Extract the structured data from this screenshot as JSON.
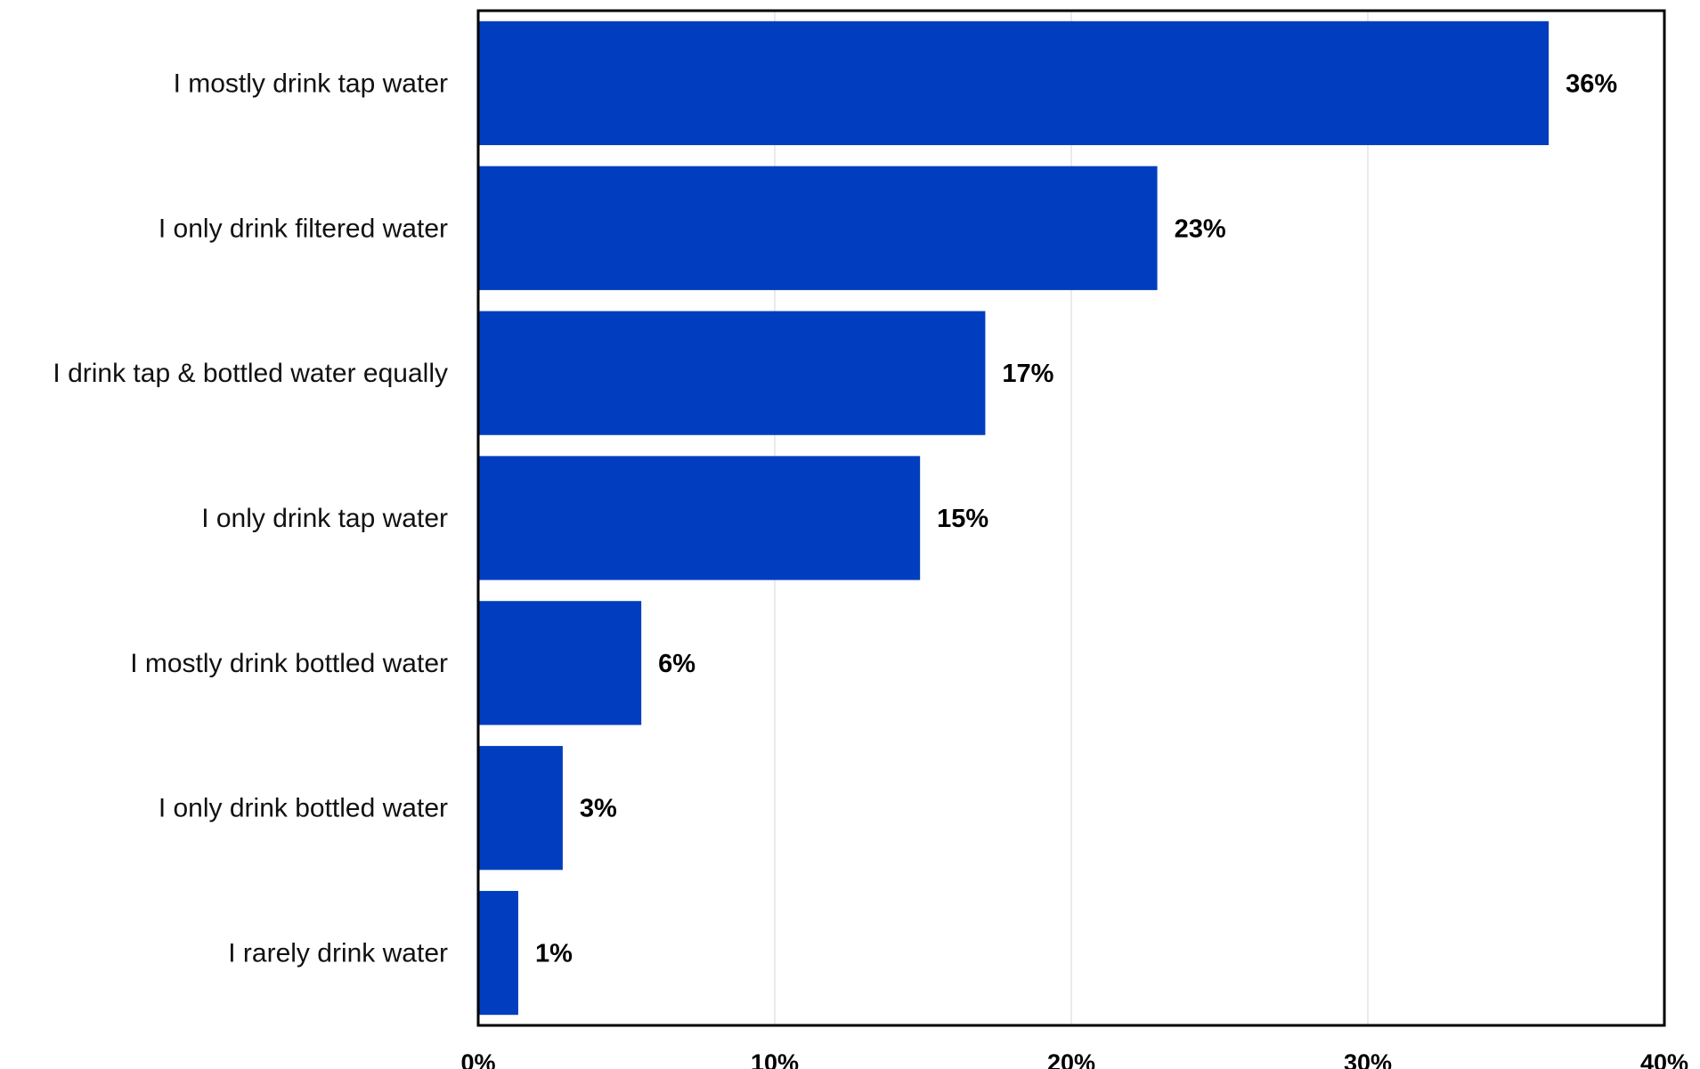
{
  "chart_data": {
    "type": "bar",
    "orientation": "horizontal",
    "categories": [
      "I mostly drink tap water",
      "I only drink filtered water",
      "I drink tap & bottled water equally",
      "I only drink tap water",
      "I mostly drink bottled water",
      "I only drink bottled water",
      "I rarely drink water"
    ],
    "values": [
      36,
      23,
      17,
      15,
      6,
      3,
      1
    ],
    "value_labels": [
      "36%",
      "23%",
      "17%",
      "15%",
      "6%",
      "3%",
      "1%"
    ],
    "plotted_values": [
      36.1,
      22.9,
      17.1,
      14.9,
      5.5,
      2.85,
      1.35
    ],
    "xlim": [
      0,
      40
    ],
    "x_ticks": [
      0,
      10,
      20,
      30,
      40
    ],
    "x_tick_labels": [
      "0%",
      "10%",
      "20%",
      "30%",
      "40%"
    ],
    "title": "",
    "xlabel": "",
    "ylabel": "",
    "grid": "vertical",
    "legend": "none",
    "bar_color": "#003EBF"
  }
}
